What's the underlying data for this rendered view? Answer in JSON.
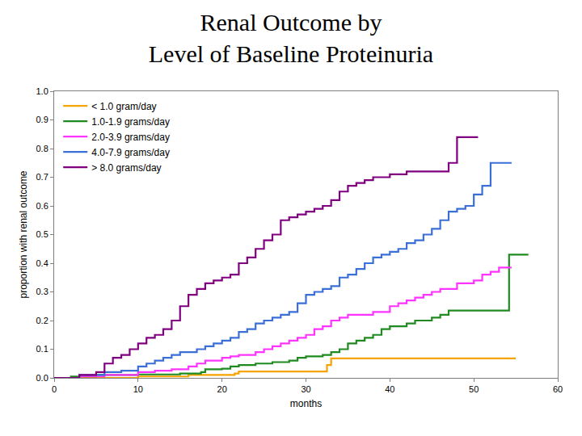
{
  "chart_data": {
    "type": "line",
    "title": "Renal Outcome by\nLevel of Baseline Proteinuria",
    "xlabel": "months",
    "ylabel": "proportion with renal outcome",
    "xlim": [
      0,
      60
    ],
    "xticks": [
      0,
      10,
      20,
      30,
      40,
      50,
      60
    ],
    "ylim": [
      0,
      1
    ],
    "yticks": [
      {
        "value": 0,
        "label": "0.0"
      },
      {
        "value": 0.1,
        "label": "0.1"
      },
      {
        "value": 0.2,
        "label": "0.2"
      },
      {
        "value": 0.3,
        "label": "0.3"
      },
      {
        "value": 0.4,
        "label": "0.4"
      },
      {
        "value": 0.5,
        "label": "0.5"
      },
      {
        "value": 0.6,
        "label": "0.6"
      },
      {
        "value": 0.7,
        "label": "0.7"
      },
      {
        "value": 0.8,
        "label": "0.8"
      },
      {
        "value": 0.9,
        "label": "0.9"
      },
      {
        "value": 1,
        "label": "1.0"
      }
    ],
    "grid": false,
    "legend": "upper left",
    "line_style": "step",
    "series": [
      {
        "name": "< 1.0 gram/day",
        "color": "#f5a300",
        "x": [
          0,
          9,
          10,
          16,
          21.5,
          22,
          32.5,
          33,
          55
        ],
        "values": [
          0,
          0,
          0.005,
          0.01,
          0.015,
          0.022,
          0.045,
          0.068,
          0.068
        ]
      },
      {
        "name": "1.0-1.9 grams/day",
        "color": "#1f8a1f",
        "x": [
          0,
          2,
          5,
          10,
          15,
          17.5,
          18,
          20,
          21,
          22,
          24,
          26,
          28,
          29,
          30,
          32,
          33,
          34,
          35,
          36,
          37,
          38,
          39,
          40,
          42,
          43,
          45,
          46,
          47,
          54,
          54.2,
          56.5
        ],
        "values": [
          0,
          0.005,
          0.01,
          0.012,
          0.015,
          0.02,
          0.03,
          0.032,
          0.04,
          0.045,
          0.05,
          0.055,
          0.06,
          0.07,
          0.075,
          0.08,
          0.09,
          0.1,
          0.12,
          0.13,
          0.14,
          0.15,
          0.17,
          0.18,
          0.19,
          0.2,
          0.21,
          0.22,
          0.235,
          0.235,
          0.43,
          0.43
        ]
      },
      {
        "name": "2.0-3.9 grams/day",
        "color": "#ff33ff",
        "x": [
          0,
          3,
          6,
          10,
          12,
          14,
          16,
          17,
          18,
          20,
          21,
          22,
          24,
          25,
          26,
          27,
          28,
          29,
          30,
          31,
          32,
          33,
          34,
          35,
          36,
          38,
          40,
          41,
          42,
          43,
          44,
          45,
          46,
          48,
          50,
          51,
          52,
          53,
          54.5
        ],
        "values": [
          0,
          0.005,
          0.01,
          0.02,
          0.025,
          0.03,
          0.04,
          0.05,
          0.06,
          0.07,
          0.075,
          0.08,
          0.09,
          0.1,
          0.11,
          0.12,
          0.13,
          0.14,
          0.15,
          0.17,
          0.18,
          0.2,
          0.21,
          0.22,
          0.22,
          0.23,
          0.25,
          0.26,
          0.27,
          0.28,
          0.29,
          0.3,
          0.31,
          0.33,
          0.34,
          0.36,
          0.37,
          0.385,
          0.385
        ]
      },
      {
        "name": "4.0-7.9 grams/day",
        "color": "#3a6fd8",
        "x": [
          0,
          3,
          6,
          8,
          10,
          11,
          12,
          13,
          14,
          15,
          17,
          18,
          19,
          20,
          21,
          22,
          23,
          24,
          25,
          26,
          27,
          28,
          29,
          30,
          31,
          32,
          33,
          34,
          35,
          36,
          37,
          38,
          39,
          40,
          41,
          42,
          43,
          44,
          45,
          46,
          47,
          48,
          49,
          50,
          51,
          52,
          54.5
        ],
        "values": [
          0,
          0.01,
          0.02,
          0.025,
          0.04,
          0.05,
          0.06,
          0.07,
          0.08,
          0.09,
          0.1,
          0.11,
          0.12,
          0.13,
          0.14,
          0.16,
          0.17,
          0.19,
          0.2,
          0.21,
          0.22,
          0.23,
          0.26,
          0.29,
          0.3,
          0.31,
          0.32,
          0.35,
          0.36,
          0.38,
          0.4,
          0.42,
          0.43,
          0.44,
          0.45,
          0.47,
          0.48,
          0.5,
          0.52,
          0.55,
          0.58,
          0.59,
          0.6,
          0.64,
          0.67,
          0.75,
          0.75
        ]
      },
      {
        "name": "> 8.0 grams/day",
        "color": "#800080",
        "x": [
          0,
          3,
          5,
          6,
          7,
          8,
          9,
          10,
          11,
          12,
          13,
          14,
          15,
          16,
          17,
          18,
          19,
          20,
          21,
          22,
          23,
          24,
          25,
          26,
          27,
          28,
          29,
          30,
          31,
          32,
          33,
          34,
          35,
          36,
          37,
          38,
          40,
          42,
          46,
          47,
          48,
          50.5
        ],
        "values": [
          0,
          0.01,
          0.02,
          0.05,
          0.07,
          0.08,
          0.1,
          0.12,
          0.14,
          0.15,
          0.17,
          0.2,
          0.25,
          0.29,
          0.31,
          0.33,
          0.34,
          0.35,
          0.36,
          0.4,
          0.42,
          0.45,
          0.48,
          0.5,
          0.55,
          0.56,
          0.57,
          0.58,
          0.59,
          0.6,
          0.62,
          0.65,
          0.67,
          0.68,
          0.69,
          0.7,
          0.71,
          0.72,
          0.72,
          0.75,
          0.84,
          0.84
        ]
      }
    ]
  }
}
